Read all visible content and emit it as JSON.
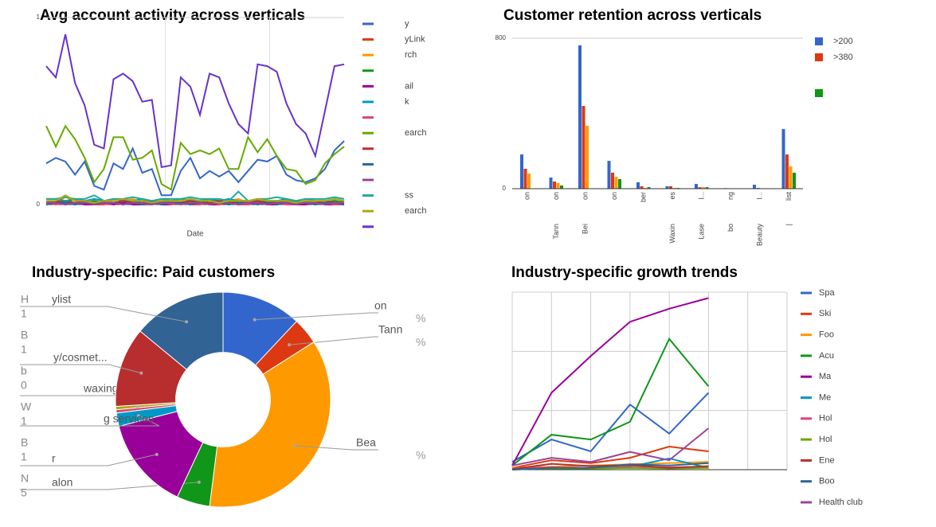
{
  "chart_data": [
    {
      "type": "line",
      "title": "Avg account activity across verticals",
      "xlabel": "Date",
      "ylim": [
        0,
        1
      ],
      "yticks": [
        0,
        1
      ],
      "grid": true,
      "series": [
        {
          "name": "y",
          "color": "#3366cc",
          "values": [
            0.22,
            0.25,
            0.23,
            0.16,
            0.23,
            0.1,
            0.08,
            0.22,
            0.19,
            0.3,
            0.17,
            0.19,
            0.05,
            0.05,
            0.18,
            0.25,
            0.14,
            0.18,
            0.15,
            0.18,
            0.12,
            0.18,
            0.24,
            0.23,
            0.26,
            0.16,
            0.13,
            0.12,
            0.14,
            0.19,
            0.29,
            0.34
          ]
        },
        {
          "name": "yLink",
          "color": "#dc3912",
          "values": [
            0.01,
            0.02,
            0.01,
            0.03,
            0.01,
            0.02,
            0.01,
            0.01,
            0.02,
            0.01,
            0.03,
            0.01,
            0.01,
            0.02,
            0.01,
            0.02,
            0.01,
            0.03,
            0.01,
            0.01,
            0.02,
            0.01,
            0.02,
            0.01,
            0.01,
            0.03,
            0.01,
            0.02,
            0.01,
            0.02,
            0.01,
            0.02
          ]
        },
        {
          "name": "rch",
          "color": "#ff9900",
          "values": [
            0.02,
            0.01,
            0.04,
            0.02,
            0.01,
            0.01,
            0.02,
            0.01,
            0.02,
            0.03,
            0.01,
            0.02,
            0.01,
            0.01,
            0.02,
            0.01,
            0.02,
            0.01,
            0.01,
            0.02,
            0.03,
            0.01,
            0.02,
            0.01,
            0.02,
            0.01,
            0.01,
            0.02,
            0.01,
            0.01,
            0.02,
            0.01
          ]
        },
        {
          "name": null,
          "color": "#109618",
          "values": [
            0.01,
            0.01,
            0.02,
            0.01,
            0.01,
            0.02,
            0.01,
            0.01,
            0.01,
            0.02,
            0.01,
            0.01,
            0.02,
            0.01,
            0.01,
            0.01,
            0.02,
            0.01,
            0.01,
            0.02,
            0.01,
            0.01,
            0.01,
            0.02,
            0.01,
            0.01,
            0.02,
            0.01,
            0.01,
            0.01,
            0.02,
            0.01
          ]
        },
        {
          "name": "ail",
          "color": "#990099",
          "values": [
            0.0,
            0.01,
            0.0,
            0.01,
            0.0,
            0.0,
            0.01,
            0.0,
            0.01,
            0.0,
            0.0,
            0.01,
            0.0,
            0.0,
            0.01,
            0.0,
            0.01,
            0.0,
            0.0,
            0.01,
            0.0,
            0.0,
            0.01,
            0.0,
            0.0,
            0.01,
            0.0,
            0.0,
            0.01,
            0.0,
            0.0,
            0.01
          ]
        },
        {
          "name": "k",
          "color": "#0099c6",
          "values": [
            0.03,
            0.03,
            0.02,
            0.03,
            0.02,
            0.03,
            0.02,
            0.03,
            0.02,
            0.02,
            0.03,
            0.02,
            0.03,
            0.02,
            0.03,
            0.02,
            0.02,
            0.03,
            0.02,
            0.03,
            0.02,
            0.02,
            0.03,
            0.02,
            0.02,
            0.03,
            0.02,
            0.03,
            0.02,
            0.02,
            0.03,
            0.02
          ]
        },
        {
          "name": null,
          "color": "#dd4477",
          "values": [
            0.01,
            0.0,
            0.01,
            0.0,
            0.01,
            0.0,
            0.0,
            0.01,
            0.0,
            0.01,
            0.0,
            0.0,
            0.01,
            0.0,
            0.01,
            0.0,
            0.0,
            0.01,
            0.0,
            0.01,
            0.0,
            0.0,
            0.01,
            0.0,
            0.01,
            0.0,
            0.0,
            0.01,
            0.0,
            0.01,
            0.0,
            0.0
          ]
        },
        {
          "name": "earch",
          "color": "#66aa00",
          "values": [
            0.42,
            0.31,
            0.42,
            0.35,
            0.25,
            0.12,
            0.19,
            0.36,
            0.36,
            0.24,
            0.25,
            0.29,
            0.11,
            0.08,
            0.33,
            0.27,
            0.29,
            0.27,
            0.3,
            0.19,
            0.19,
            0.36,
            0.28,
            0.35,
            0.26,
            0.19,
            0.18,
            0.11,
            0.13,
            0.22,
            0.27,
            0.31
          ]
        },
        {
          "name": null,
          "color": "#b82e2e",
          "values": [
            0.01,
            0.02,
            0.01,
            0.01,
            0.02,
            0.01,
            0.01,
            0.01,
            0.02,
            0.01,
            0.01,
            0.02,
            0.01,
            0.01,
            0.01,
            0.02,
            0.01,
            0.01,
            0.02,
            0.01,
            0.01,
            0.01,
            0.02,
            0.01,
            0.01,
            0.02,
            0.01,
            0.01,
            0.01,
            0.02,
            0.01,
            0.01
          ]
        },
        {
          "name": null,
          "color": "#316395",
          "values": [
            0.0,
            0.01,
            0.01,
            0.0,
            0.01,
            0.0,
            0.01,
            0.01,
            0.0,
            0.01,
            0.0,
            0.01,
            0.0,
            0.01,
            0.01,
            0.0,
            0.01,
            0.0,
            0.01,
            0.0,
            0.01,
            0.01,
            0.0,
            0.01,
            0.0,
            0.01,
            0.0,
            0.01,
            0.0,
            0.01,
            0.01,
            0.0
          ]
        },
        {
          "name": null,
          "color": "#994499",
          "values": [
            0.01,
            0.01,
            0.0,
            0.01,
            0.01,
            0.0,
            0.01,
            0.01,
            0.0,
            0.01,
            0.01,
            0.0,
            0.01,
            0.01,
            0.0,
            0.01,
            0.01,
            0.0,
            0.01,
            0.01,
            0.0,
            0.01,
            0.01,
            0.0,
            0.01,
            0.01,
            0.0,
            0.01,
            0.01,
            0.0,
            0.01,
            0.01
          ]
        },
        {
          "name": "ss",
          "color": "#22aa99",
          "values": [
            0.03,
            0.03,
            0.04,
            0.03,
            0.03,
            0.05,
            0.02,
            0.03,
            0.03,
            0.04,
            0.03,
            0.02,
            0.03,
            0.03,
            0.03,
            0.04,
            0.03,
            0.03,
            0.03,
            0.02,
            0.07,
            0.02,
            0.03,
            0.03,
            0.04,
            0.03,
            0.02,
            0.03,
            0.03,
            0.03,
            0.04,
            0.03
          ]
        },
        {
          "name": "earch",
          "color": "#aaaa11",
          "values": [
            0.02,
            0.02,
            0.05,
            0.02,
            0.02,
            0.01,
            0.02,
            0.02,
            0.03,
            0.02,
            0.02,
            0.01,
            0.02,
            0.02,
            0.02,
            0.03,
            0.02,
            0.02,
            0.01,
            0.02,
            0.02,
            0.02,
            0.03,
            0.02,
            0.02,
            0.02,
            0.01,
            0.02,
            0.02,
            0.02,
            0.03,
            0.02
          ]
        },
        {
          "name": null,
          "color": "#6633cc",
          "values": [
            0.74,
            0.68,
            0.91,
            0.65,
            0.53,
            0.32,
            0.3,
            0.67,
            0.7,
            0.66,
            0.55,
            0.56,
            0.2,
            0.21,
            0.68,
            0.63,
            0.48,
            0.7,
            0.68,
            0.54,
            0.43,
            0.38,
            0.75,
            0.74,
            0.71,
            0.54,
            0.43,
            0.38,
            0.26,
            0.5,
            0.74,
            0.75
          ]
        }
      ]
    },
    {
      "type": "bar",
      "title": "Customer retention across verticals",
      "categories": [
        "on",
        "on",
        "on",
        "on",
        "ber",
        "es",
        "l...",
        "ng",
        "l...",
        "list"
      ],
      "categories_row2": [
        null,
        "Tann",
        "Bei",
        null,
        null,
        "Waxin",
        "Lase",
        "bo",
        "Beauty",
        "|"
      ],
      "ylim": [
        0,
        800
      ],
      "yticks": [
        0,
        800
      ],
      "grid": true,
      "series": [
        {
          "name": ">200",
          "color": "#3366cc",
          "values": [
            182,
            59,
            762,
            148,
            34,
            13,
            25,
            3,
            21,
            317
          ]
        },
        {
          "name": ">380",
          "color": "#dc3912",
          "values": [
            106,
            38,
            440,
            85,
            13,
            13,
            8,
            0,
            4,
            182
          ]
        },
        {
          "name": null,
          "color": "#ff9900",
          "values": [
            80,
            30,
            334,
            63,
            4,
            4,
            8,
            0,
            0,
            118
          ]
        },
        {
          "name": null,
          "color": "#109618",
          "values": [
            0,
            17,
            0,
            51,
            8,
            4,
            8,
            0,
            0,
            85
          ]
        }
      ]
    },
    {
      "type": "pie",
      "title": "Industry-specific: Paid customers",
      "hole": 0.44,
      "labels": [
        "on",
        "Tann",
        "Bea",
        "alon",
        "r",
        "g services",
        null,
        "waxing",
        "y/cosmet...",
        "ylist"
      ],
      "label_suffixes": [
        "%",
        "%",
        "%",
        null,
        null,
        null,
        null,
        null,
        null,
        null
      ],
      "label_fragments": [
        "H",
        "1",
        "B",
        "1",
        "b",
        "0",
        "W",
        "1",
        "B",
        "1",
        "N",
        "5"
      ],
      "values": [
        12,
        4,
        36,
        5,
        14,
        2,
        0.5,
        0.5,
        12,
        14
      ],
      "colors": [
        "#3366cc",
        "#dc3912",
        "#ff9900",
        "#109618",
        "#990099",
        "#0099c6",
        "#dd4477",
        "#aaaa11",
        "#b82e2e",
        "#316395"
      ]
    },
    {
      "type": "line",
      "title": "Industry-specific growth trends",
      "categories": [
        null,
        null,
        null,
        null,
        null,
        null,
        null,
        null
      ],
      "ylim": [
        0,
        300
      ],
      "series": [
        {
          "name": "Spa",
          "color": "#3366cc",
          "values": [
            13,
            51,
            31,
            110,
            61,
            130,
            null,
            null
          ]
        },
        {
          "name": "Ski",
          "color": "#dc3912",
          "values": [
            3,
            16,
            11,
            20,
            39,
            31,
            null,
            null
          ]
        },
        {
          "name": "Foo",
          "color": "#ff9900",
          "values": [
            3,
            5,
            7,
            9,
            11,
            13,
            null,
            null
          ]
        },
        {
          "name": "Acu",
          "color": "#109618",
          "values": [
            7,
            59,
            51,
            81,
            221,
            141,
            null,
            null
          ]
        },
        {
          "name": "Ma",
          "color": "#990099",
          "values": [
            7,
            130,
            192,
            250,
            272,
            290,
            null,
            null
          ]
        },
        {
          "name": "Me",
          "color": "#0099c6",
          "values": [
            0,
            3,
            3,
            5,
            19,
            3,
            null,
            null
          ]
        },
        {
          "name": "Hol",
          "color": "#dd4477",
          "values": [
            2,
            4,
            3,
            6,
            4,
            5,
            null,
            null
          ]
        },
        {
          "name": "Hol",
          "color": "#66aa00",
          "values": [
            1,
            2,
            2,
            3,
            2,
            3,
            null,
            null
          ]
        },
        {
          "name": "Ene",
          "color": "#b82e2e",
          "values": [
            1,
            10,
            6,
            8,
            3,
            6,
            null,
            null
          ]
        },
        {
          "name": "Boo",
          "color": "#316395",
          "values": [
            0,
            3,
            3,
            9,
            7,
            11,
            null,
            null
          ]
        },
        {
          "name": "Health club",
          "color": "#994499",
          "values": [
            7,
            20,
            13,
            30,
            16,
            70,
            null,
            null
          ]
        }
      ]
    }
  ]
}
